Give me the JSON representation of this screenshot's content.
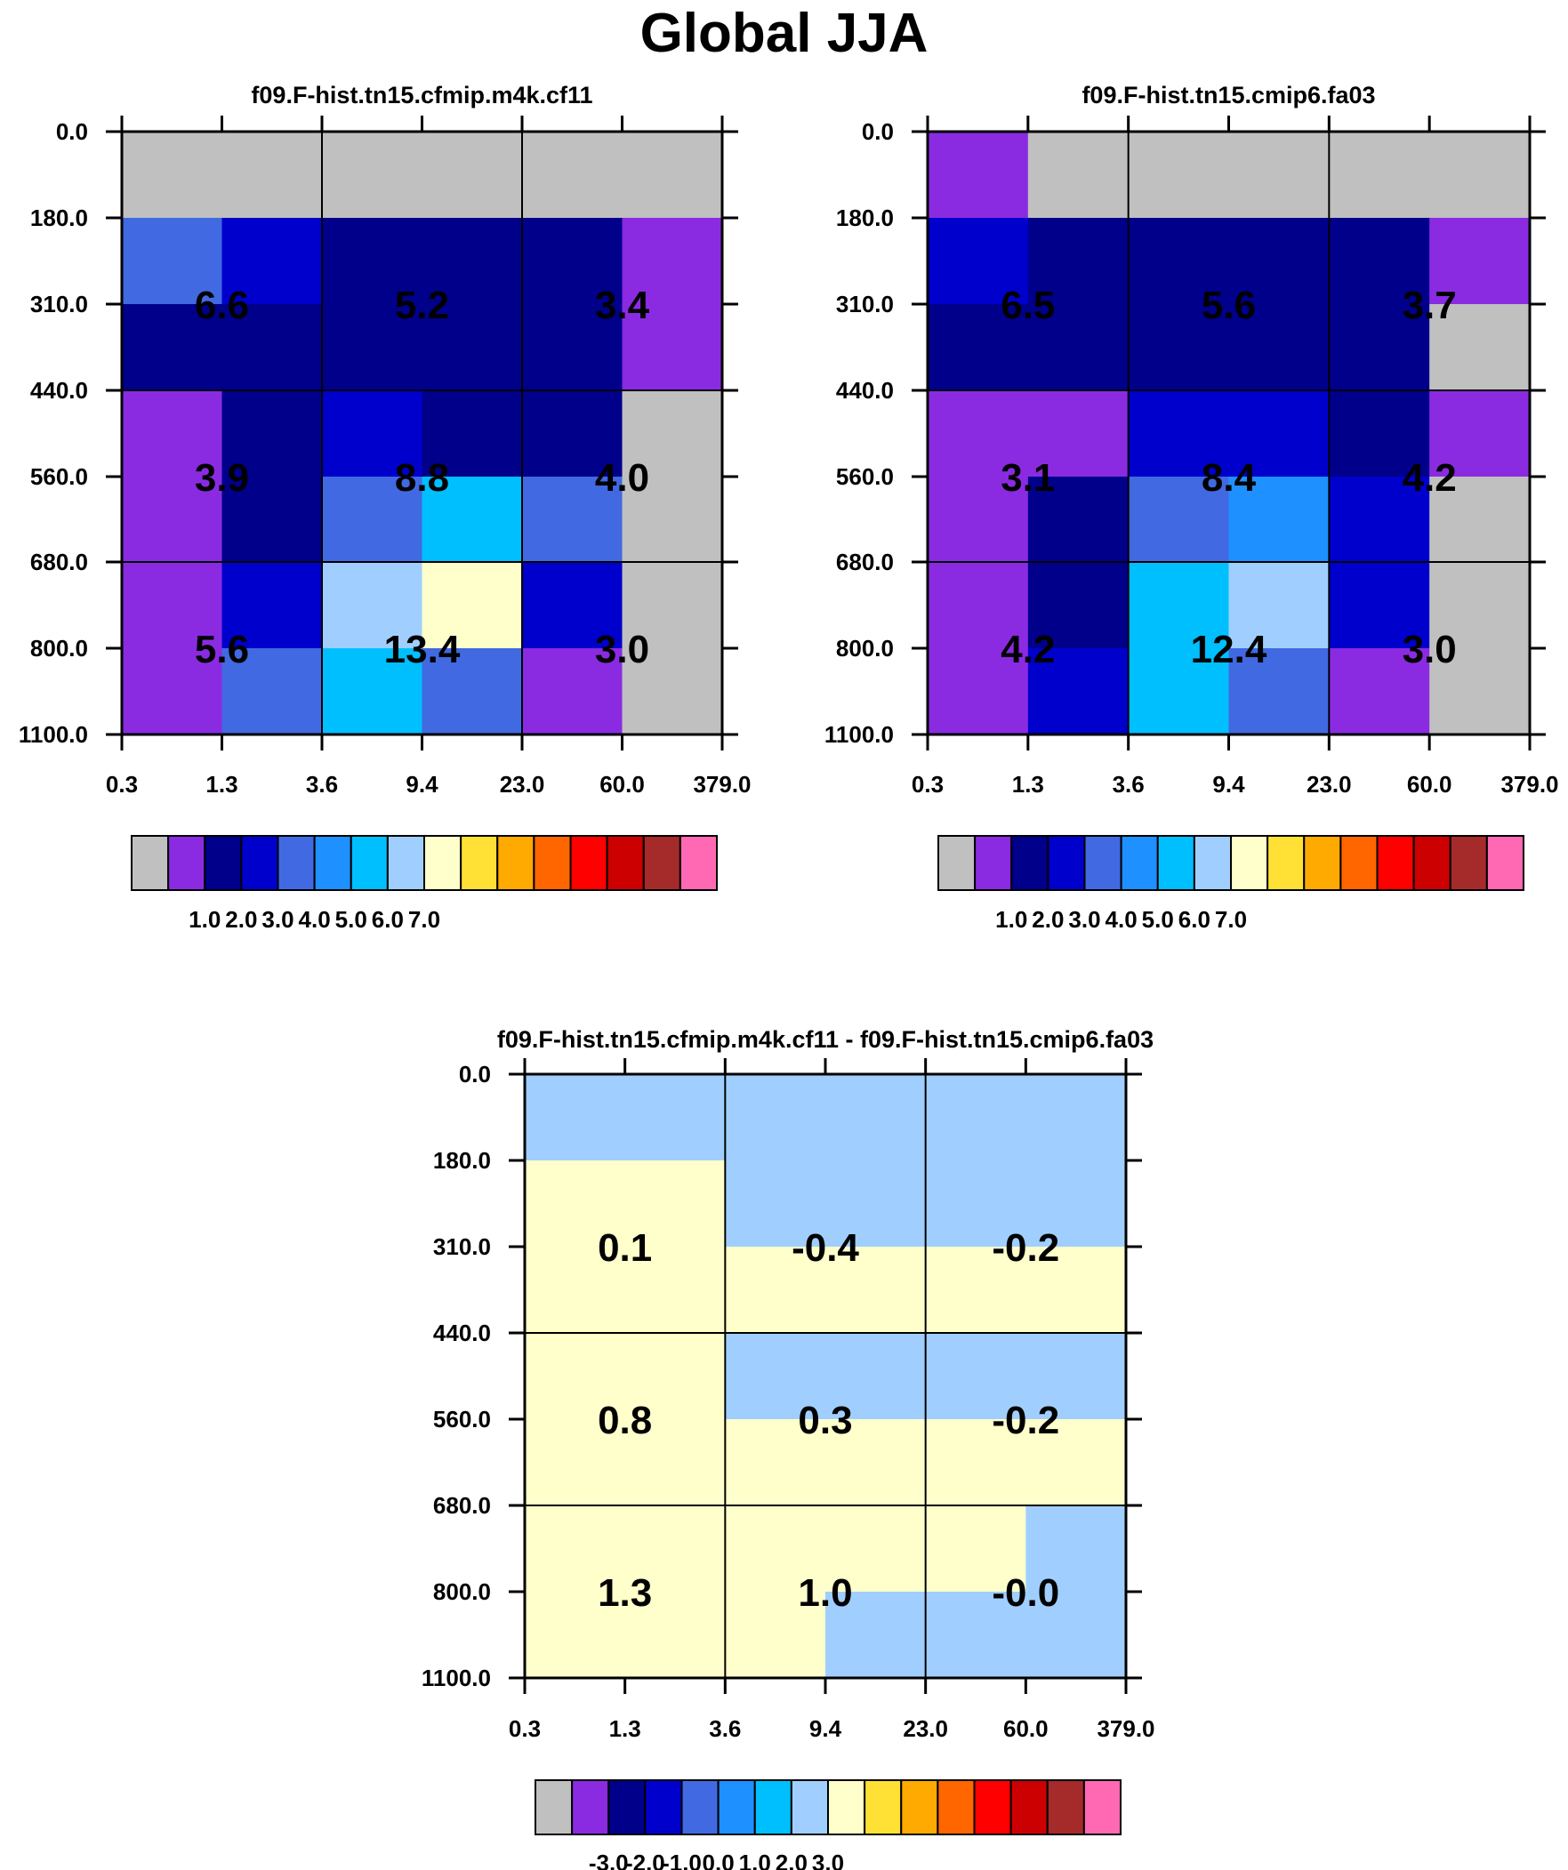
{
  "title": "Global JJA",
  "colors": {
    "palette_abs": [
      "#c0c0c0",
      "#8a2be2",
      "#00008b",
      "#0000cd",
      "#4169e1",
      "#1e90ff",
      "#00bfff",
      "#a0cfff",
      "#ffffcc",
      "#ffe135",
      "#ffaa00",
      "#ff6600",
      "#ff0000",
      "#cc0000",
      "#a52a2a",
      "#ff69b4"
    ],
    "palette_diff": [
      "#c0c0c0",
      "#8a2be2",
      "#00008b",
      "#0000cd",
      "#4169e1",
      "#1e90ff",
      "#00bfff",
      "#a0cfff",
      "#ffffcc",
      "#ffe135",
      "#ffaa00",
      "#ff6600",
      "#ff0000",
      "#cc0000",
      "#a52a2a",
      "#ff69b4"
    ]
  },
  "chart_data": [
    {
      "type": "heatmap",
      "title": "f09.F-hist.tn15.cfmip.m4k.cf11",
      "x_ticks": [
        "0.3",
        "1.3",
        "3.6",
        "9.4",
        "23.0",
        "60.0",
        "379.0"
      ],
      "y_ticks": [
        "0.0",
        "180.0",
        "310.0",
        "440.0",
        "560.0",
        "680.0",
        "800.0",
        "1100.0"
      ],
      "cell_colors": [
        [
          0,
          0,
          0,
          0,
          0,
          0
        ],
        [
          4,
          3,
          2,
          2,
          2,
          1
        ],
        [
          2,
          2,
          2,
          2,
          2,
          1
        ],
        [
          1,
          2,
          3,
          2,
          2,
          0
        ],
        [
          1,
          2,
          4,
          6,
          4,
          0
        ],
        [
          1,
          3,
          7,
          8,
          3,
          0
        ],
        [
          1,
          4,
          6,
          4,
          1,
          0
        ]
      ],
      "summary_labels": [
        [
          "6.6",
          "5.2",
          "3.4"
        ],
        [
          "3.9",
          "8.8",
          "4.0"
        ],
        [
          "5.6",
          "13.4",
          "3.0"
        ]
      ],
      "colorbar_labels": [
        "1.0",
        "2.0",
        "3.0",
        "4.0",
        "5.0",
        "6.0",
        "7.0"
      ]
    },
    {
      "type": "heatmap",
      "title": "f09.F-hist.tn15.cmip6.fa03",
      "x_ticks": [
        "0.3",
        "1.3",
        "3.6",
        "9.4",
        "23.0",
        "60.0",
        "379.0"
      ],
      "y_ticks": [
        "0.0",
        "180.0",
        "310.0",
        "440.0",
        "560.0",
        "680.0",
        "800.0",
        "1100.0"
      ],
      "cell_colors": [
        [
          1,
          0,
          0,
          0,
          0,
          0
        ],
        [
          3,
          2,
          2,
          2,
          2,
          1
        ],
        [
          2,
          2,
          2,
          2,
          2,
          0
        ],
        [
          1,
          1,
          3,
          3,
          2,
          1
        ],
        [
          1,
          2,
          4,
          5,
          3,
          0
        ],
        [
          1,
          2,
          6,
          7,
          3,
          0
        ],
        [
          1,
          3,
          6,
          4,
          1,
          0
        ]
      ],
      "summary_labels": [
        [
          "6.5",
          "5.6",
          "3.7"
        ],
        [
          "3.1",
          "8.4",
          "4.2"
        ],
        [
          "4.2",
          "12.4",
          "3.0"
        ]
      ],
      "colorbar_labels": [
        "1.0",
        "2.0",
        "3.0",
        "4.0",
        "5.0",
        "6.0",
        "7.0"
      ]
    },
    {
      "type": "heatmap",
      "title": "f09.F-hist.tn15.cfmip.m4k.cf11 - f09.F-hist.tn15.cmip6.fa03",
      "x_ticks": [
        "0.3",
        "1.3",
        "3.6",
        "9.4",
        "23.0",
        "60.0",
        "379.0"
      ],
      "y_ticks": [
        "0.0",
        "180.0",
        "310.0",
        "440.0",
        "560.0",
        "680.0",
        "800.0",
        "1100.0"
      ],
      "cell_colors": [
        [
          7,
          7,
          7,
          7,
          7,
          7
        ],
        [
          8,
          8,
          7,
          7,
          7,
          7
        ],
        [
          8,
          8,
          8,
          8,
          8,
          8
        ],
        [
          8,
          8,
          7,
          7,
          7,
          7
        ],
        [
          8,
          8,
          8,
          8,
          8,
          8
        ],
        [
          8,
          8,
          8,
          8,
          8,
          7
        ],
        [
          8,
          8,
          8,
          7,
          7,
          7
        ]
      ],
      "summary_labels": [
        [
          "0.1",
          "-0.4",
          "-0.2"
        ],
        [
          "0.8",
          "0.3",
          "-0.2"
        ],
        [
          "1.3",
          "1.0",
          "-0.0"
        ]
      ],
      "colorbar_labels": [
        "-3.0",
        "-2.0",
        "-1.0",
        "0.0",
        "1.0",
        "2.0",
        "3.0"
      ]
    }
  ]
}
